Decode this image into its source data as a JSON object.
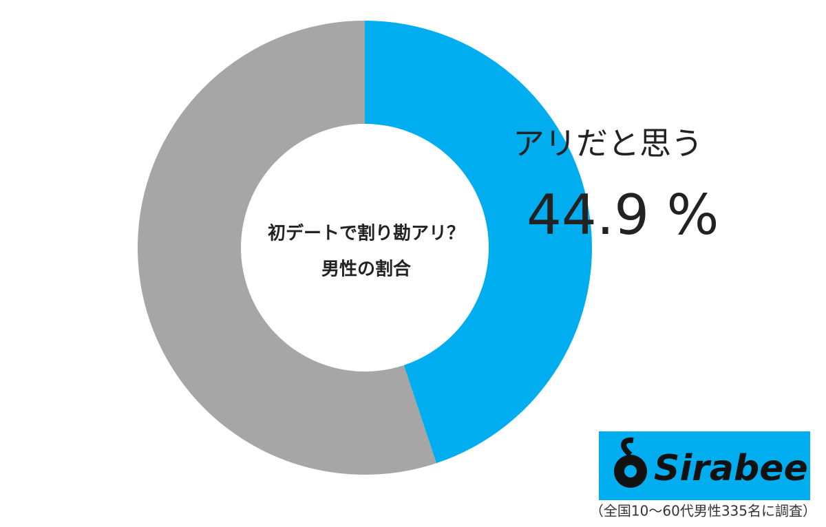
{
  "chart_data": {
    "type": "pie",
    "title": "初デートで割り勘アリ？",
    "subtitle": "男性の割合",
    "categories": [
      "アリだと思う",
      null
    ],
    "values": [
      44.9,
      55.1
    ],
    "value_labels": [
      "44.9 %",
      null
    ],
    "colors": [
      "#00aeef",
      "#a6a6a6"
    ],
    "note": "（全国10～60代男性335名に調査）"
  },
  "logo": "Sirabee"
}
